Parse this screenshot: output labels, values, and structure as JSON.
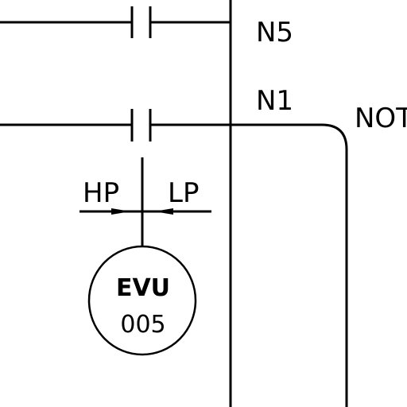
{
  "labels": {
    "n5": "N5",
    "n1": "N1",
    "not": "NOT",
    "hp": "HP",
    "lp": "LP",
    "evu_line1": "EVU",
    "evu_line2": "005"
  },
  "colors": {
    "background": "#ffffff",
    "ink": "#000000"
  }
}
